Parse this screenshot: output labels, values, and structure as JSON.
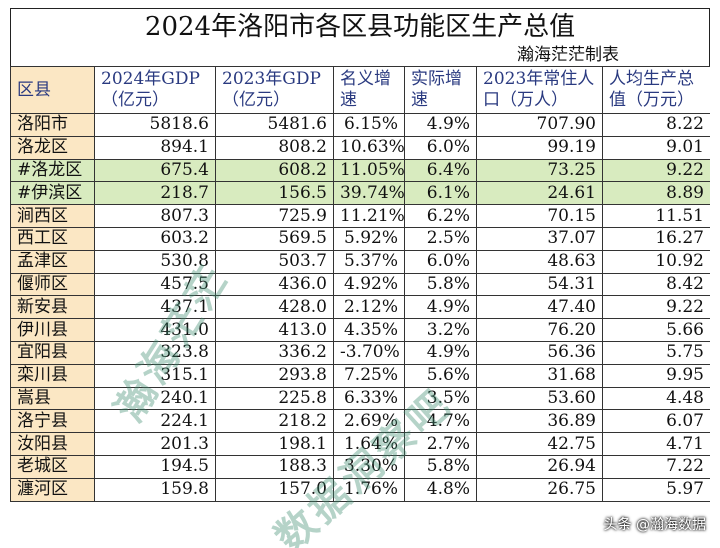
{
  "title": "2024年洛阳市各区县功能区生产总值",
  "author": "瀚海茫茫制表",
  "columns": [
    "区县",
    "2024年GDP（亿元）",
    "2023年GDP（亿元）",
    "名义增速",
    "实际增速",
    "2023年常住人口（万人）",
    "人均生产总值（万元）"
  ],
  "rows": [
    [
      "洛阳市",
      "5818.6",
      "5481.6",
      "6.15%",
      "4.9%",
      "707.90",
      "8.22"
    ],
    [
      "洛龙区",
      "894.1",
      "808.2",
      "10.63%",
      "6.0%",
      "99.19",
      "9.01"
    ],
    [
      "#洛龙区",
      "675.4",
      "608.2",
      "11.05%",
      "6.4%",
      "73.25",
      "9.22"
    ],
    [
      "#伊滨区",
      "218.7",
      "156.5",
      "39.74%",
      "6.1%",
      "24.61",
      "8.89"
    ],
    [
      "涧西区",
      "807.3",
      "725.9",
      "11.21%",
      "6.2%",
      "70.15",
      "11.51"
    ],
    [
      "西工区",
      "603.2",
      "569.5",
      "5.92%",
      "2.5%",
      "37.07",
      "16.27"
    ],
    [
      "孟津区",
      "530.8",
      "503.7",
      "5.37%",
      "6.0%",
      "48.63",
      "10.92"
    ],
    [
      "偃师区",
      "457.5",
      "436.0",
      "4.92%",
      "5.8%",
      "54.31",
      "8.42"
    ],
    [
      "新安县",
      "437.1",
      "428.0",
      "2.12%",
      "4.9%",
      "47.40",
      "9.22"
    ],
    [
      "伊川县",
      "431.0",
      "413.0",
      "4.35%",
      "3.2%",
      "76.20",
      "5.66"
    ],
    [
      "宜阳县",
      "323.8",
      "336.2",
      "-3.70%",
      "4.9%",
      "56.36",
      "5.75"
    ],
    [
      "栾川县",
      "315.1",
      "293.8",
      "7.25%",
      "5.6%",
      "31.68",
      "9.95"
    ],
    [
      "嵩县",
      "240.1",
      "225.8",
      "6.33%",
      "3.5%",
      "53.60",
      "4.48"
    ],
    [
      "洛宁县",
      "224.1",
      "218.2",
      "2.69%",
      "4.7%",
      "36.89",
      "6.07"
    ],
    [
      "汝阳县",
      "201.3",
      "198.1",
      "1.64%",
      "2.7%",
      "42.75",
      "4.71"
    ],
    [
      "老城区",
      "194.5",
      "188.3",
      "3.30%",
      "5.8%",
      "26.94",
      "7.22"
    ],
    [
      "瀍河区",
      "159.8",
      "157.0",
      "1.76%",
      "4.8%",
      "26.75",
      "5.97"
    ]
  ],
  "highlight_rows": [
    2,
    3
  ],
  "watermark": {
    "line1": "瀚海茫茫",
    "line2": "数据洞察吧"
  },
  "corner_label": "头条 @瀚海数据"
}
